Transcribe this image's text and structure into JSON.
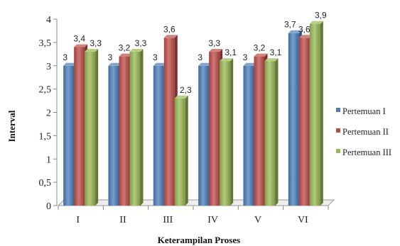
{
  "chart_data": {
    "type": "bar",
    "categories": [
      "I",
      "II",
      "III",
      "IV",
      "V",
      "VI"
    ],
    "series": [
      {
        "name": "Pertemuan I",
        "values": [
          3,
          3,
          3,
          3,
          3,
          3.7
        ],
        "labels": [
          "3",
          "3",
          "3",
          "3",
          "3",
          "3,7"
        ],
        "color": "#4a7ebb"
      },
      {
        "name": "Pertemuan II",
        "values": [
          3.4,
          3.2,
          3.6,
          3.3,
          3.2,
          3.6
        ],
        "labels": [
          "3,4",
          "3,2",
          "3,6",
          "3,3",
          "3,2",
          "3,6"
        ],
        "color": "#be4b48"
      },
      {
        "name": "Pertemuan III",
        "values": [
          3.3,
          3.3,
          2.3,
          3.1,
          3.1,
          3.9
        ],
        "labels": [
          "3,3",
          "3,3",
          "2,3",
          "3,1",
          "3,1",
          "3,9"
        ],
        "color": "#98b954"
      }
    ],
    "yticks": [
      "0",
      "0,5",
      "1",
      "1,5",
      "2",
      "2,5",
      "3",
      "3,5",
      "4"
    ],
    "xlabel": "Keterampilan Proses",
    "ylabel": "Interval",
    "ylim": [
      0,
      4
    ],
    "grid": false,
    "legend_position": "right"
  }
}
